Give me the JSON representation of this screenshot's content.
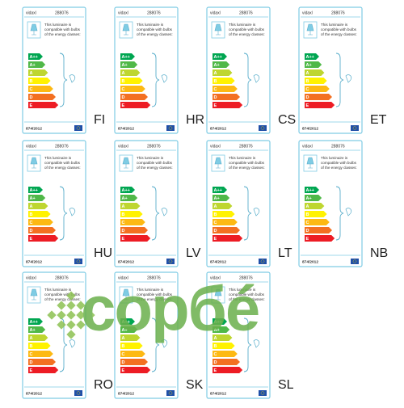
{
  "brand": "vidaxl",
  "model": "288076",
  "description": [
    "This luminaire is",
    "compatible with bulbs",
    "of the energy classes:"
  ],
  "classes": [
    "A++",
    "A+",
    "A",
    "B",
    "C",
    "D",
    "E"
  ],
  "regulation": "874/2012",
  "languages": [
    "FI",
    "HR",
    "CS",
    "ET",
    "HU",
    "LV",
    "LT",
    "NB",
    "RO",
    "SK",
    "SL"
  ],
  "watermark": "copбé"
}
